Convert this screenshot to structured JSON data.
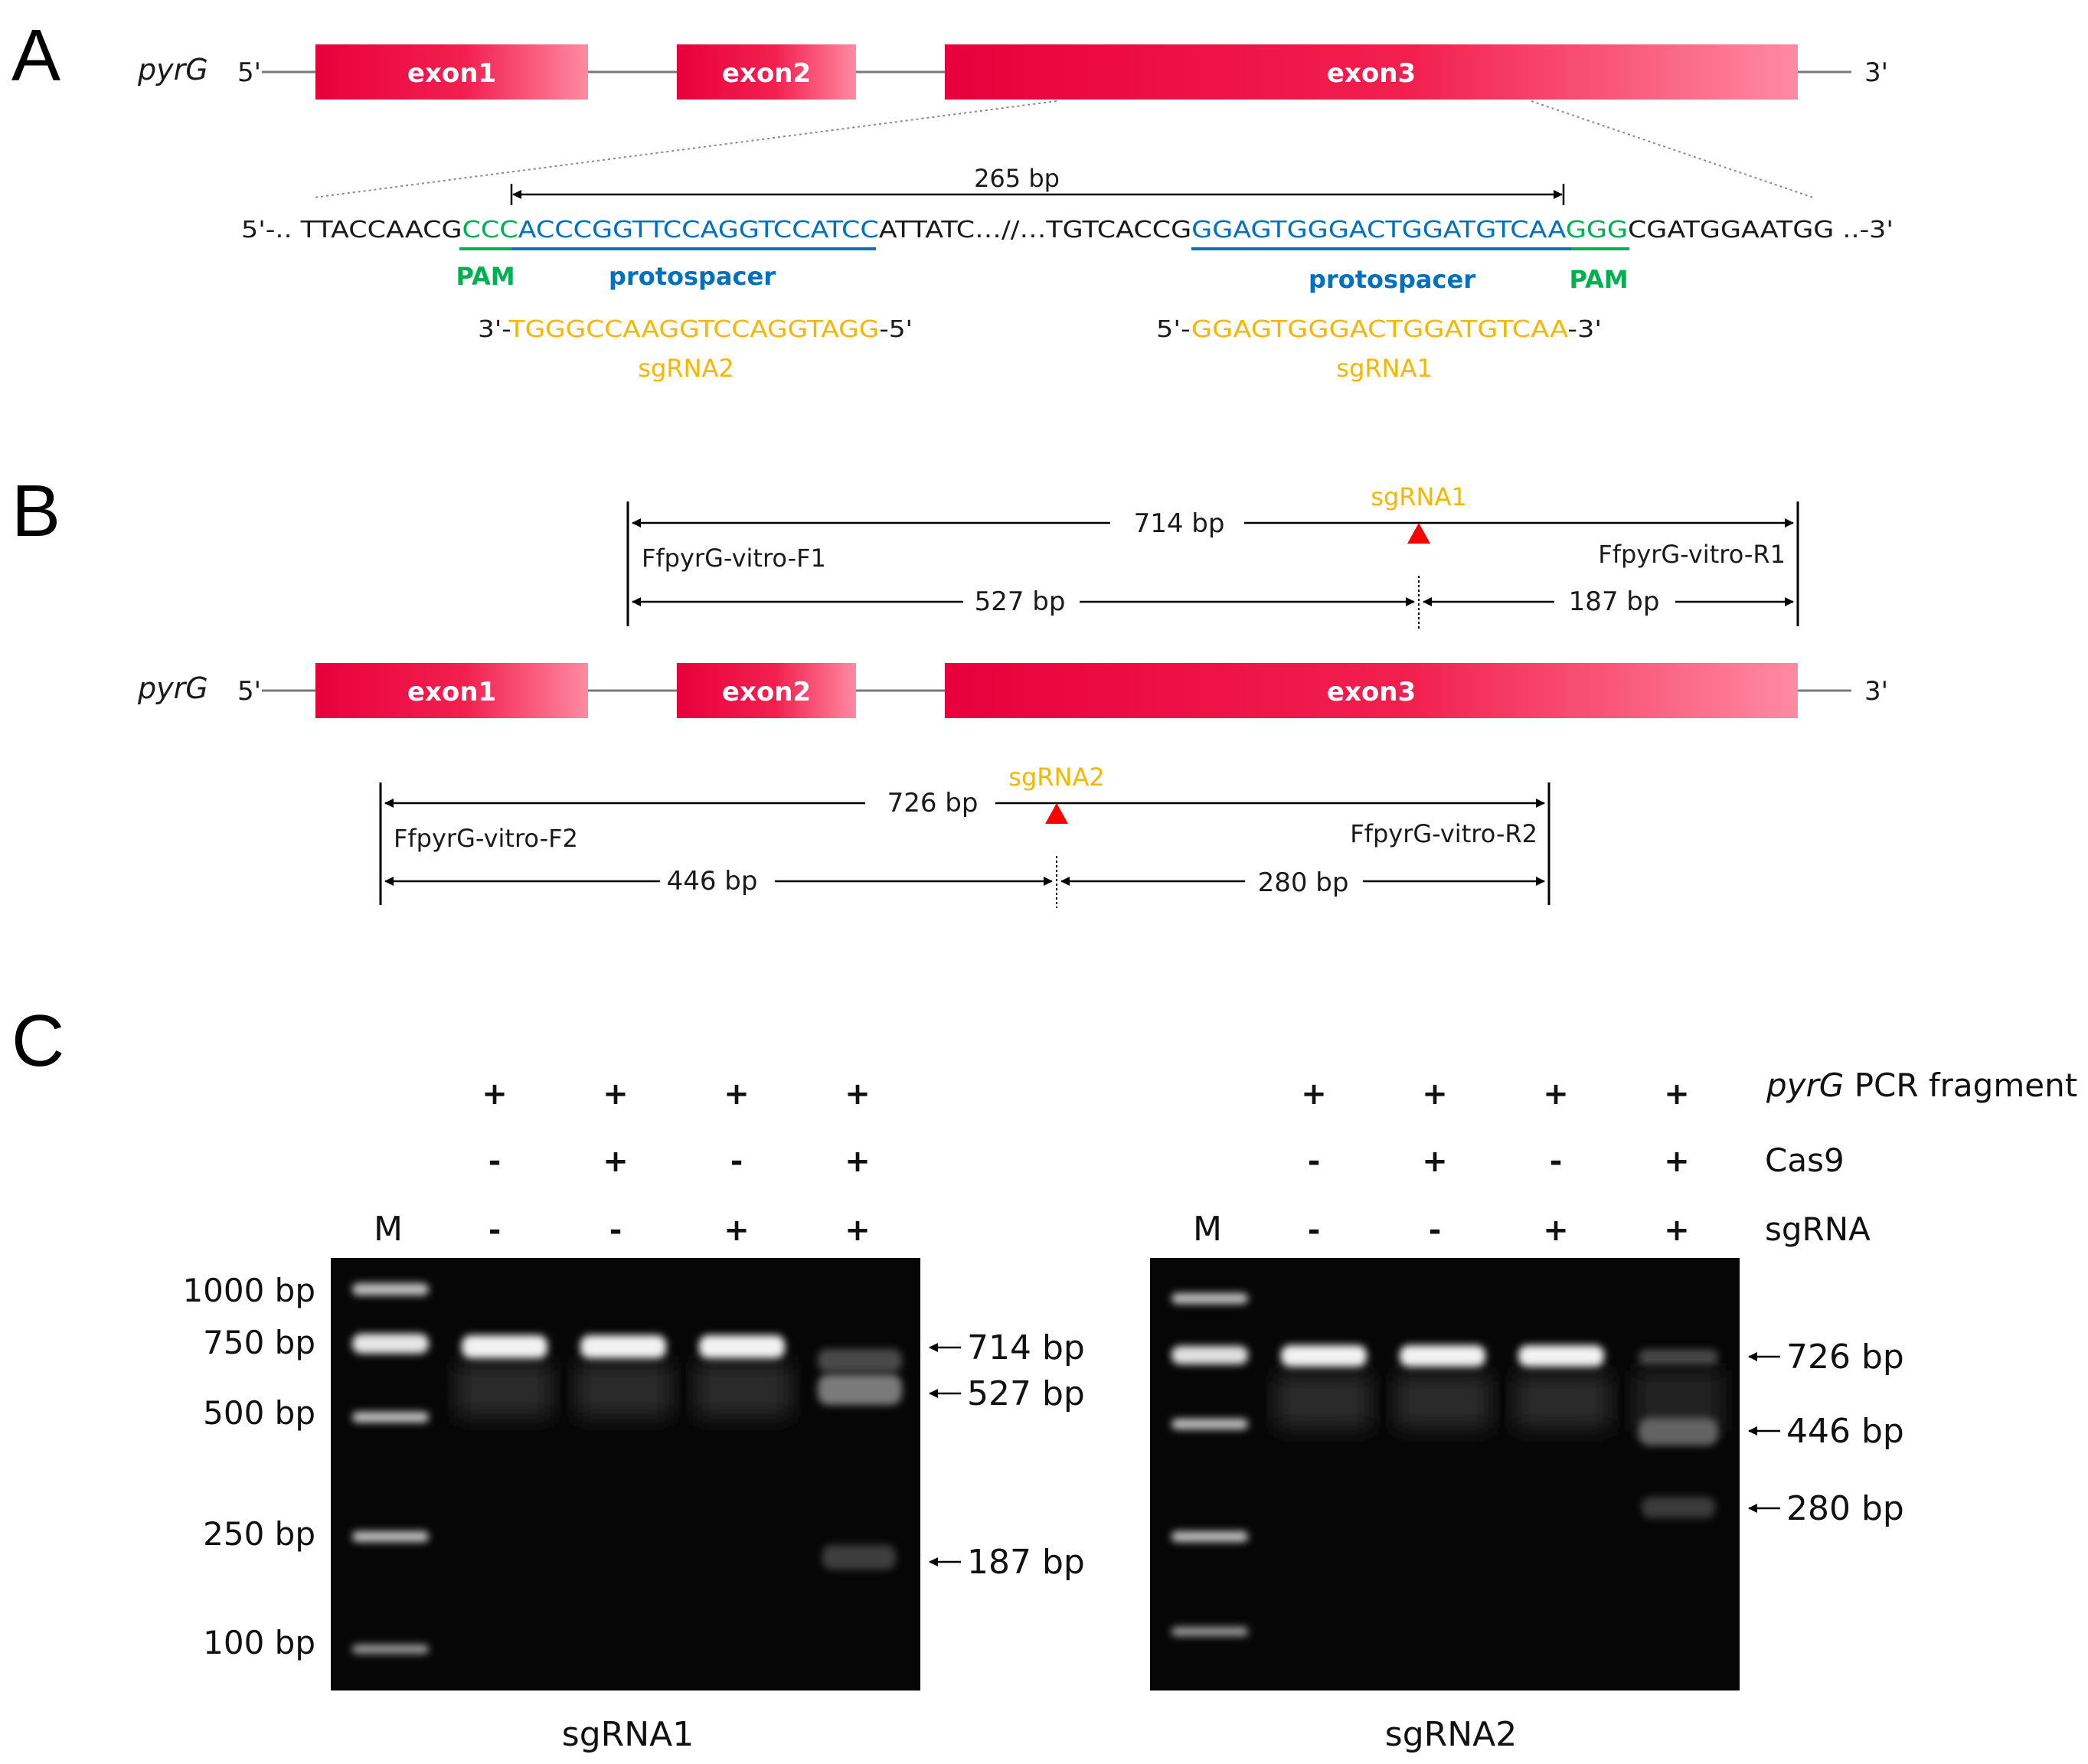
{
  "panels": {
    "a": "A",
    "b": "B",
    "c": "C"
  },
  "colors": {
    "exon_start": "#e8003c",
    "exon_end": "#ff7f98",
    "pam": "#00b050",
    "protospacer": "#0070c0",
    "sgrna": "#f5b700",
    "cut_marker": "#ff0000"
  },
  "gene": {
    "name": "pyrG",
    "five_prime": "5'",
    "three_prime": "3'",
    "exons": [
      "exon1",
      "exon2",
      "exon3"
    ]
  },
  "seq_detail": {
    "distance": "265 bp",
    "left_end": "5'-.. ",
    "seg_plain1": "TTACCAACG",
    "seg_pam1": "CCC",
    "seg_proto1": "ACCCGGTTCCAGGTCCATCC",
    "seg_plain2": "ATTATC…//…TGTCACCG",
    "seg_proto2": "GGAGTGGGACTGGATGTCAA",
    "seg_pam2": "GGG",
    "seg_plain3": "CGATGGAATGG",
    "right_end": " ..-3'",
    "pam_label": "PAM",
    "protospacer_label": "protospacer",
    "sgrna2_prefix": "3'-",
    "sgrna2_seq": "TGGGCCAAGGTCCAGGTAGG",
    "sgrna2_suffix": "-5'",
    "sgrna2_name": "sgRNA2",
    "sgrna1_prefix": "5'-",
    "sgrna1_seq": "GGAGTGGGACTGGATGTCAA",
    "sgrna1_suffix": "-3'",
    "sgrna1_name": "sgRNA1"
  },
  "panel_b": {
    "amplicon1": {
      "guide": "sgRNA1",
      "total": "714 bp",
      "forward": "FfpyrG-vitro-F1",
      "reverse": "FfpyrG-vitro-R1",
      "left": "527 bp",
      "right": "187 bp"
    },
    "amplicon2": {
      "guide": "sgRNA2",
      "total": "726 bp",
      "forward": "FfpyrG-vitro-F2",
      "reverse": "FfpyrG-vitro-R2",
      "left": "446 bp",
      "right": "280 bp"
    }
  },
  "panel_c": {
    "row_labels": {
      "fragment_italic": "pyrG",
      "fragment_rest": " PCR fragment",
      "cas9": "Cas9",
      "sgrna": "sgRNA"
    },
    "lane_conditions": {
      "fragment": [
        "+",
        "+",
        "+",
        "+"
      ],
      "cas9": [
        "-",
        "+",
        "-",
        "+"
      ],
      "sgrna": [
        "-",
        "-",
        "+",
        "+"
      ]
    },
    "marker_label": "M",
    "ladder": [
      "1000 bp",
      "750 bp",
      "500 bp",
      "250 bp",
      "100 bp"
    ],
    "gel1": {
      "title": "sgRNA1",
      "products": [
        "714 bp",
        "527 bp",
        "187 bp"
      ]
    },
    "gel2": {
      "title": "sgRNA2",
      "products": [
        "726 bp",
        "446 bp",
        "280 bp"
      ]
    }
  }
}
